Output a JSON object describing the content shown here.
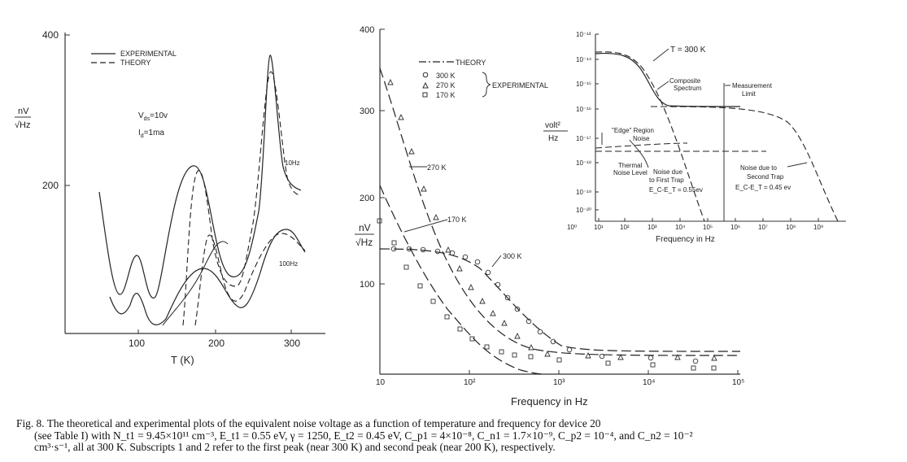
{
  "left_chart": {
    "y_ticks": [
      "400",
      "200"
    ],
    "x_ticks": [
      "100",
      "200",
      "300"
    ],
    "y_label_top": "nV",
    "y_label_bottom": "√Hz",
    "x_label": "T (K)",
    "legend": {
      "experimental": "EXPERIMENTAL",
      "theory": "THEORY"
    },
    "params": {
      "vds": "V",
      "vds_sub": "ds",
      "vds_val": "=10v",
      "id": "I",
      "id_sub": "d",
      "id_val": "=1ma"
    },
    "curve_labels": {
      "c10": "10Hz",
      "c100": "100Hz"
    }
  },
  "middle_chart": {
    "y_ticks": [
      "400",
      "300",
      "200",
      "100"
    ],
    "x_ticks": [
      "10",
      "10²",
      "10³",
      "10⁴",
      "10⁵"
    ],
    "y_label_top": "nV",
    "y_label_bottom": "√Hz",
    "x_label": "Frequency  in  Hz",
    "legend": {
      "theory": "THEORY",
      "t300": "300 K",
      "t270": "270 K",
      "t170": "170 K",
      "experimental": "EXPERIMENTAL"
    },
    "curve_labels": {
      "c270": "270 K",
      "c170": "170 K",
      "c300": "300 K"
    }
  },
  "inset_chart": {
    "y_ticks": [
      "10⁻¹³",
      "10⁻¹⁴",
      "10⁻¹⁵",
      "10⁻¹⁶",
      "10⁻¹⁷",
      "10⁻¹⁸",
      "10⁻¹⁹",
      "10⁻²⁰"
    ],
    "x_ticks": [
      "10⁰",
      "10¹",
      "10²",
      "10³",
      "10⁴",
      "10⁵",
      "10⁶",
      "10⁷",
      "10⁸",
      "10⁹"
    ],
    "y_label_top": "volt²",
    "y_label_bottom": "Hz",
    "x_label": "Frequency  in  Hz",
    "annotations": {
      "t300": "T = 300 K",
      "composite_1": "Composite",
      "composite_2": "Spectrum",
      "meas_1": "Measurement",
      "meas_2": "Limit",
      "edge_1": "\"Edge\" Region",
      "edge_2": "Noise",
      "thermal_1": "Thermal",
      "thermal_2": "Noise Level",
      "first_1": "Noise due",
      "first_2": "to First Trap",
      "first_3": "E_C-E_T = 0.55ev",
      "second_1": "Noise due to",
      "second_2": "Second Trap",
      "second_3": "E_C-E_T = 0.45 ev"
    }
  },
  "caption": {
    "line1": "Fig. 8.   The theoretical and experimental plots of the equivalent noise voltage as a function of temperature and frequency for device 20",
    "line2": "(see Table I) with N_t1 = 9.45×10¹¹ cm⁻³, E_t1 = 0.55 eV, γ = 1250, E_t2 = 0.45 eV, C_p1 = 4×10⁻⁸, C_n1 = 1.7×10⁻⁹, C_p2 = 10⁻⁴, and C_n2 = 10⁻²",
    "line3": "cm³·s⁻¹, all at 300 K. Subscripts 1 and 2 refer to the first peak (near 300 K) and second peak (near 200 K), respectively."
  }
}
